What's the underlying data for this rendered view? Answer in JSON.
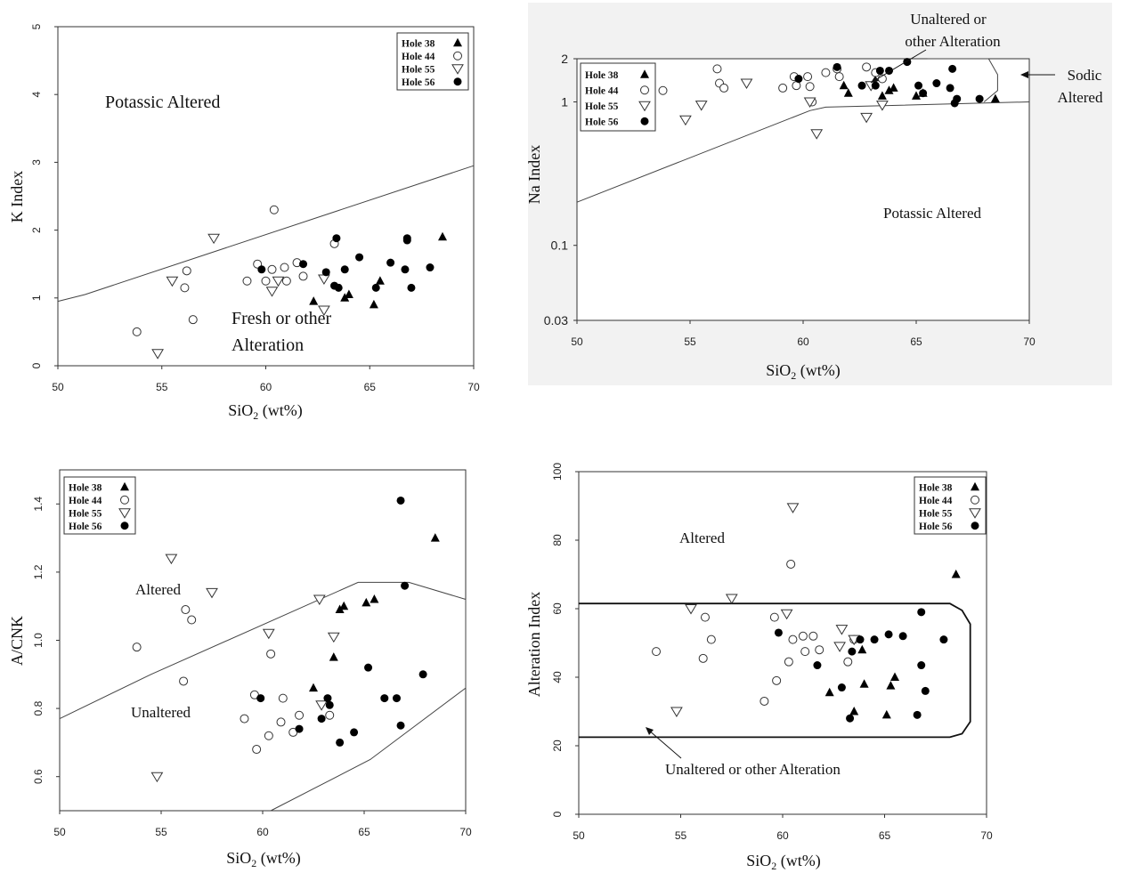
{
  "legend": [
    "Hole 38",
    "Hole 44",
    "Hole 55",
    "Hole 56"
  ],
  "chart_data": [
    {
      "type": "scatter",
      "xlabel": "SiO2 (wt%)",
      "ylabel": "K Index",
      "xlim": [
        50,
        70
      ],
      "ylim": [
        0,
        5
      ],
      "xticks": [
        "50",
        "55",
        "60",
        "65",
        "70"
      ],
      "yticks": [
        "0",
        "1",
        "2",
        "3",
        "4",
        "5"
      ],
      "legend_position": "top-right",
      "annotations": [
        "Potassic Altered",
        "Fresh or other",
        "Alteration"
      ],
      "boundary": [
        [
          50,
          0.95
        ],
        [
          51.3,
          1.05
        ],
        [
          70,
          2.95
        ]
      ],
      "series": [
        {
          "name": "Hole 38",
          "marker": "triangle-filled",
          "points": [
            [
              62.3,
              0.95
            ],
            [
              63.8,
              1.0
            ],
            [
              64.0,
              1.05
            ],
            [
              65.5,
              1.25
            ],
            [
              65.2,
              0.9
            ],
            [
              68.5,
              1.9
            ]
          ]
        },
        {
          "name": "Hole 44",
          "marker": "circle-open",
          "points": [
            [
              53.8,
              0.5
            ],
            [
              56.2,
              1.4
            ],
            [
              56.1,
              1.15
            ],
            [
              56.5,
              0.68
            ],
            [
              59.1,
              1.25
            ],
            [
              59.6,
              1.5
            ],
            [
              60.4,
              2.3
            ],
            [
              60.3,
              1.42
            ],
            [
              60.9,
              1.45
            ],
            [
              61.0,
              1.25
            ],
            [
              61.5,
              1.52
            ],
            [
              61.8,
              1.32
            ],
            [
              63.3,
              1.8
            ],
            [
              60.0,
              1.25
            ]
          ]
        },
        {
          "name": "Hole 55",
          "marker": "triangle-open",
          "points": [
            [
              54.8,
              0.18
            ],
            [
              55.5,
              1.25
            ],
            [
              57.5,
              1.88
            ],
            [
              60.3,
              1.1
            ],
            [
              60.6,
              1.25
            ],
            [
              62.8,
              1.28
            ],
            [
              62.8,
              0.82
            ]
          ]
        },
        {
          "name": "Hole 56",
          "marker": "circle-filled",
          "points": [
            [
              59.8,
              1.42
            ],
            [
              61.8,
              1.5
            ],
            [
              62.9,
              1.38
            ],
            [
              63.3,
              1.18
            ],
            [
              63.5,
              1.15
            ],
            [
              63.4,
              1.88
            ],
            [
              63.8,
              1.42
            ],
            [
              64.5,
              1.6
            ],
            [
              65.3,
              1.15
            ],
            [
              66.0,
              1.52
            ],
            [
              66.7,
              1.42
            ],
            [
              66.8,
              1.88
            ],
            [
              66.8,
              1.85
            ],
            [
              67.0,
              1.15
            ],
            [
              67.9,
              1.45
            ]
          ]
        }
      ]
    },
    {
      "type": "scatter",
      "xlabel": "SiO2 (wt%)",
      "ylabel": "Na Index",
      "xlim": [
        50,
        70
      ],
      "ylim": [
        0.03,
        2
      ],
      "yscale": "log",
      "xticks": [
        "50",
        "55",
        "60",
        "65",
        "70"
      ],
      "yticks": [
        "0.03",
        "0.1",
        "1",
        "2"
      ],
      "legend_position": "top-left",
      "annotations": [
        "Unaltered or",
        "other Alteration",
        "Sodic",
        "Altered",
        "Potassic Altered"
      ],
      "boundary": [
        [
          50,
          0.2
        ],
        [
          60.3,
          0.87
        ],
        [
          61.0,
          0.92
        ],
        [
          70,
          1.0
        ]
      ],
      "series": [
        {
          "name": "Hole 38",
          "marker": "triangle-filled",
          "points": [
            [
              61.8,
              1.3
            ],
            [
              62.0,
              1.15
            ],
            [
              63.5,
              1.1
            ],
            [
              63.8,
              1.2
            ],
            [
              64.0,
              1.25
            ],
            [
              65.0,
              1.1
            ],
            [
              65.3,
              1.15
            ],
            [
              68.5,
              1.05
            ]
          ]
        },
        {
          "name": "Hole 44",
          "marker": "circle-open",
          "points": [
            [
              53.8,
              1.2
            ],
            [
              56.2,
              1.7
            ],
            [
              56.3,
              1.35
            ],
            [
              56.5,
              1.25
            ],
            [
              59.1,
              1.25
            ],
            [
              59.6,
              1.5
            ],
            [
              59.7,
              1.3
            ],
            [
              60.2,
              1.5
            ],
            [
              60.3,
              1.28
            ],
            [
              60.4,
              1.0
            ],
            [
              61.0,
              1.6
            ],
            [
              61.5,
              1.7
            ],
            [
              61.6,
              1.5
            ],
            [
              62.8,
              1.75
            ],
            [
              63.2,
              1.6
            ],
            [
              63.5,
              1.45
            ]
          ]
        },
        {
          "name": "Hole 55",
          "marker": "triangle-open",
          "points": [
            [
              54.8,
              0.75
            ],
            [
              55.5,
              0.95
            ],
            [
              57.5,
              1.35
            ],
            [
              60.3,
              1.0
            ],
            [
              60.6,
              0.6
            ],
            [
              62.8,
              0.78
            ],
            [
              63.0,
              1.3
            ],
            [
              63.5,
              0.95
            ]
          ]
        },
        {
          "name": "Hole 56",
          "marker": "circle-filled",
          "points": [
            [
              59.8,
              1.45
            ],
            [
              61.5,
              1.75
            ],
            [
              62.6,
              1.3
            ],
            [
              63.2,
              1.3
            ],
            [
              63.4,
              1.65
            ],
            [
              63.8,
              1.65
            ],
            [
              64.6,
              1.9
            ],
            [
              65.1,
              1.3
            ],
            [
              65.3,
              1.15
            ],
            [
              65.9,
              1.35
            ],
            [
              66.5,
              1.25
            ],
            [
              66.6,
              1.7
            ],
            [
              66.7,
              0.98
            ],
            [
              66.8,
              1.05
            ],
            [
              67.8,
              1.05
            ]
          ]
        }
      ]
    },
    {
      "type": "scatter",
      "xlabel": "SiO2 (wt%)",
      "ylabel": "A/CNK",
      "xlim": [
        50,
        70
      ],
      "ylim": [
        0.5,
        1.5
      ],
      "xticks": [
        "50",
        "55",
        "60",
        "65",
        "70"
      ],
      "yticks": [
        "0.6",
        "0.8",
        "1.0",
        "1.2",
        "1.4"
      ],
      "legend_position": "top-left",
      "annotations": [
        "Altered",
        "Unaltered"
      ],
      "boundary": [
        [
          50,
          0.77
        ],
        [
          54.5,
          0.9
        ],
        [
          64.7,
          1.17
        ],
        [
          67.2,
          1.17
        ],
        [
          70,
          1.12
        ],
        [
          70,
          0.86
        ],
        [
          65.3,
          0.65
        ],
        [
          60.4,
          0.5
        ]
      ],
      "series": [
        {
          "name": "Hole 38",
          "marker": "triangle-filled",
          "points": [
            [
              62.5,
              0.86
            ],
            [
              63.5,
              0.95
            ],
            [
              63.8,
              1.09
            ],
            [
              64.0,
              1.1
            ],
            [
              65.1,
              1.11
            ],
            [
              65.5,
              1.12
            ],
            [
              68.5,
              1.3
            ]
          ]
        },
        {
          "name": "Hole 44",
          "marker": "circle-open",
          "points": [
            [
              53.8,
              0.98
            ],
            [
              56.2,
              1.09
            ],
            [
              56.1,
              0.88
            ],
            [
              56.5,
              1.06
            ],
            [
              59.1,
              0.77
            ],
            [
              59.6,
              0.84
            ],
            [
              59.7,
              0.68
            ],
            [
              60.3,
              0.72
            ],
            [
              60.4,
              0.96
            ],
            [
              60.9,
              0.76
            ],
            [
              61.0,
              0.83
            ],
            [
              61.5,
              0.73
            ],
            [
              61.8,
              0.78
            ],
            [
              63.3,
              0.78
            ]
          ]
        },
        {
          "name": "Hole 55",
          "marker": "triangle-open",
          "points": [
            [
              54.8,
              0.6
            ],
            [
              55.5,
              1.24
            ],
            [
              57.5,
              1.14
            ],
            [
              60.3,
              1.02
            ],
            [
              62.8,
              1.12
            ],
            [
              63.5,
              1.01
            ],
            [
              62.9,
              0.81
            ]
          ]
        },
        {
          "name": "Hole 56",
          "marker": "circle-filled",
          "points": [
            [
              59.9,
              0.83
            ],
            [
              61.8,
              0.74
            ],
            [
              62.9,
              0.77
            ],
            [
              63.2,
              0.83
            ],
            [
              63.3,
              0.81
            ],
            [
              63.8,
              0.7
            ],
            [
              64.5,
              0.73
            ],
            [
              65.2,
              0.92
            ],
            [
              66.0,
              0.83
            ],
            [
              66.6,
              0.83
            ],
            [
              66.8,
              1.41
            ],
            [
              66.8,
              0.75
            ],
            [
              67.0,
              1.16
            ],
            [
              67.9,
              0.9
            ]
          ]
        }
      ]
    },
    {
      "type": "scatter",
      "xlabel": "SiO2 (wt%)",
      "ylabel": "Alteration Index",
      "xlim": [
        50,
        70
      ],
      "ylim": [
        0,
        100
      ],
      "xticks": [
        "50",
        "55",
        "60",
        "65",
        "70"
      ],
      "yticks": [
        "0",
        "20",
        "40",
        "60",
        "80",
        "100"
      ],
      "legend_position": "top-right",
      "annotations": [
        "Altered",
        "Unaltered or other Alteration"
      ],
      "boundary": [
        [
          50,
          61.5
        ],
        [
          68.2,
          61.5
        ],
        [
          68.8,
          59.5
        ],
        [
          69.2,
          55.5
        ],
        [
          69.2,
          27
        ],
        [
          68.8,
          23.5
        ],
        [
          68.2,
          22.5
        ],
        [
          50,
          22.5
        ]
      ],
      "series": [
        {
          "name": "Hole 38",
          "marker": "triangle-filled",
          "points": [
            [
              62.3,
              35.5
            ],
            [
              63.5,
              30
            ],
            [
              63.9,
              48
            ],
            [
              64.0,
              38
            ],
            [
              65.1,
              29
            ],
            [
              65.3,
              37.5
            ],
            [
              65.5,
              40
            ],
            [
              68.5,
              70
            ]
          ]
        },
        {
          "name": "Hole 44",
          "marker": "circle-open",
          "points": [
            [
              53.8,
              47.5
            ],
            [
              56.2,
              57.5
            ],
            [
              56.1,
              45.5
            ],
            [
              56.5,
              51
            ],
            [
              59.1,
              33
            ],
            [
              59.6,
              57.5
            ],
            [
              59.7,
              39
            ],
            [
              60.3,
              44.5
            ],
            [
              60.4,
              73
            ],
            [
              60.5,
              51
            ],
            [
              61.0,
              52
            ],
            [
              61.1,
              47.5
            ],
            [
              61.5,
              52
            ],
            [
              61.8,
              48
            ],
            [
              63.2,
              44.5
            ],
            [
              63.5,
              51
            ]
          ]
        },
        {
          "name": "Hole 55",
          "marker": "triangle-open",
          "points": [
            [
              54.8,
              30
            ],
            [
              55.5,
              60
            ],
            [
              57.5,
              63
            ],
            [
              60.2,
              58.5
            ],
            [
              60.5,
              89.5
            ],
            [
              62.8,
              49
            ],
            [
              62.9,
              54
            ],
            [
              63.5,
              51
            ]
          ]
        },
        {
          "name": "Hole 56",
          "marker": "circle-filled",
          "points": [
            [
              59.8,
              53
            ],
            [
              61.7,
              43.5
            ],
            [
              62.9,
              37
            ],
            [
              63.3,
              28
            ],
            [
              63.4,
              47.5
            ],
            [
              63.8,
              51
            ],
            [
              64.5,
              51
            ],
            [
              65.2,
              52.5
            ],
            [
              65.9,
              52
            ],
            [
              66.6,
              29
            ],
            [
              66.8,
              59
            ],
            [
              66.8,
              43.5
            ],
            [
              67.0,
              36
            ],
            [
              67.9,
              51
            ]
          ]
        }
      ]
    }
  ]
}
